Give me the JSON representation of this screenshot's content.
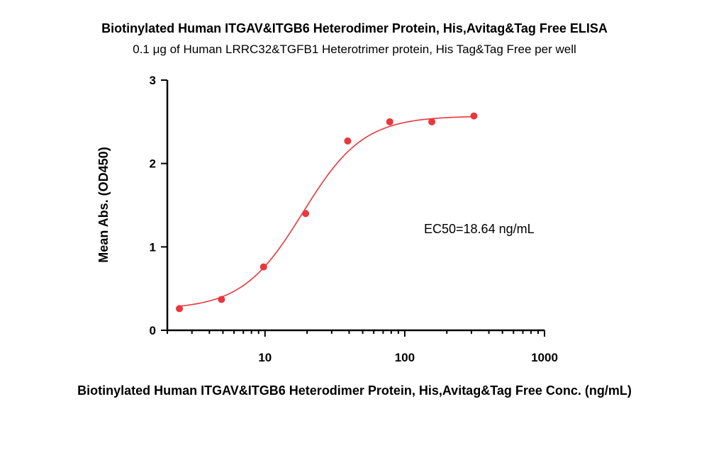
{
  "chart_data": {
    "type": "scatter",
    "title": "Biotinylated Human ITGAV&ITGB6 Heterodimer Protein, His,Avitag&Tag Free ELISA",
    "subtitle": "0.1 μg of Human LRRC32&TGFB1 Heterotrimer protein, His Tag&Tag Free per well",
    "xlabel": "Biotinylated Human ITGAV&ITGB6 Heterodimer Protein, His,Avitag&Tag Free Conc. (ng/mL)",
    "ylabel": "Mean Abs. (OD450)",
    "x_scale": "log",
    "xlim": [
      2,
      1000
    ],
    "ylim": [
      0,
      3
    ],
    "x_ticks": [
      {
        "value": 10,
        "label": "10"
      },
      {
        "value": 100,
        "label": "100"
      },
      {
        "value": 1000,
        "label": "1000"
      }
    ],
    "y_ticks": [
      {
        "value": 0,
        "label": "0"
      },
      {
        "value": 1,
        "label": "1"
      },
      {
        "value": 2,
        "label": "2"
      },
      {
        "value": 3,
        "label": "3"
      }
    ],
    "series": [
      {
        "color": "#e8383d",
        "x": [
          2.44,
          4.88,
          9.77,
          19.53,
          39.06,
          78.13,
          156.25,
          312.5
        ],
        "y": [
          0.26,
          0.37,
          0.76,
          1.4,
          2.27,
          2.5,
          2.5,
          2.57
        ]
      }
    ],
    "fit": {
      "model": "4PL",
      "bottom": 0.25,
      "top": 2.57,
      "ec50": 18.64,
      "hill": 2.0
    },
    "annotation": "EC50=18.64 ng/mL",
    "grid": false,
    "legend": "none"
  }
}
